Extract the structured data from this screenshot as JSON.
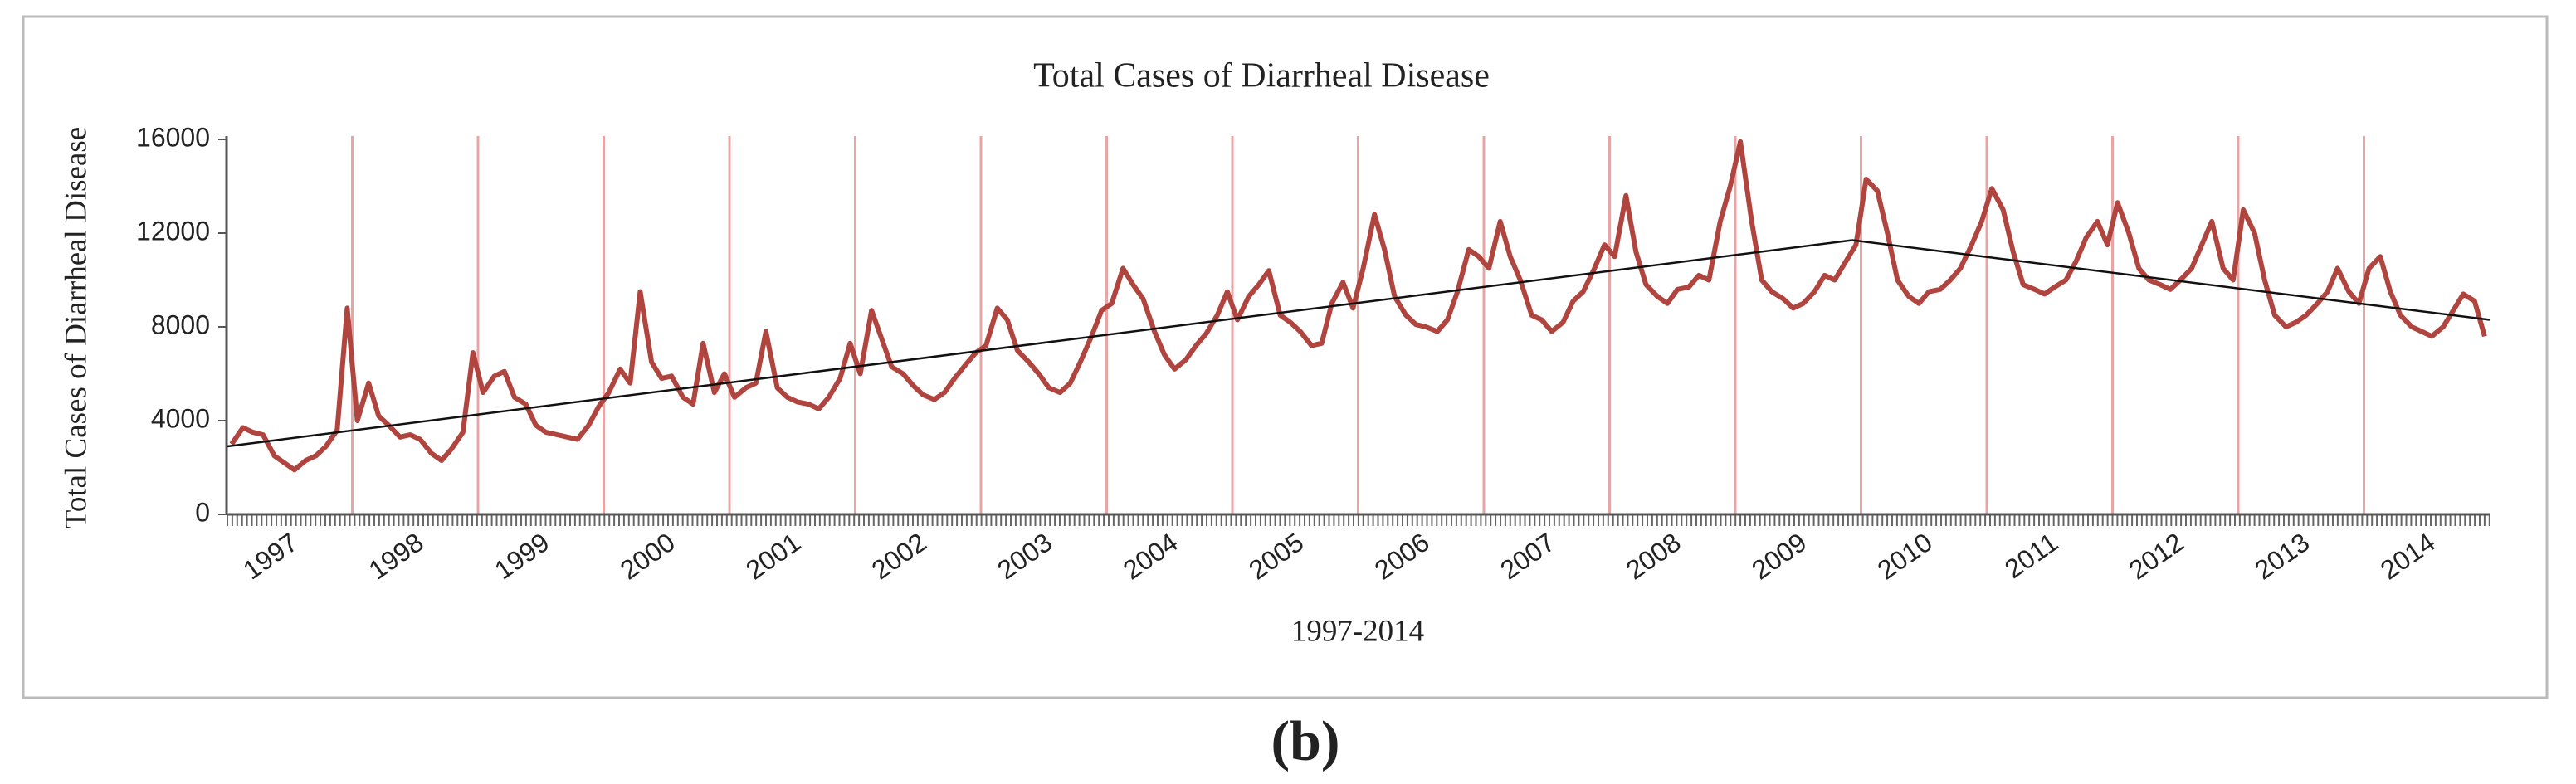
{
  "chart_data": {
    "type": "line",
    "title": "Total Cases of Diarrheal Disease",
    "y_label": "Total Cases of Diarrheal Disease",
    "x_label": "1997-2014",
    "caption": "(b)",
    "xlim": [
      1997,
      2015
    ],
    "xticks": [
      1997,
      1998,
      1999,
      2000,
      2001,
      2002,
      2003,
      2004,
      2005,
      2006,
      2007,
      2008,
      2009,
      2010,
      2011,
      2012,
      2013,
      2014
    ],
    "ylim": [
      0,
      16000
    ],
    "yticks": [
      0,
      4000,
      8000,
      12000,
      16000
    ],
    "grid_color": "#e8a5a5",
    "x": [
      1997.04,
      1997.13,
      1997.21,
      1997.29,
      1997.38,
      1997.46,
      1997.54,
      1997.63,
      1997.71,
      1997.79,
      1997.88,
      1997.96,
      1998.04,
      1998.13,
      1998.21,
      1998.29,
      1998.38,
      1998.46,
      1998.54,
      1998.63,
      1998.71,
      1998.79,
      1998.88,
      1998.96,
      1999.04,
      1999.13,
      1999.21,
      1999.29,
      1999.38,
      1999.46,
      1999.54,
      1999.63,
      1999.71,
      1999.79,
      1999.88,
      1999.96,
      2000.04,
      2000.13,
      2000.21,
      2000.29,
      2000.38,
      2000.46,
      2000.54,
      2000.63,
      2000.71,
      2000.79,
      2000.88,
      2000.96,
      2001.04,
      2001.13,
      2001.21,
      2001.29,
      2001.38,
      2001.46,
      2001.54,
      2001.63,
      2001.71,
      2001.79,
      2001.88,
      2001.96,
      2002.04,
      2002.13,
      2002.21,
      2002.29,
      2002.38,
      2002.46,
      2002.54,
      2002.63,
      2002.71,
      2002.79,
      2002.88,
      2002.96,
      2003.04,
      2003.13,
      2003.21,
      2003.29,
      2003.38,
      2003.46,
      2003.54,
      2003.63,
      2003.71,
      2003.79,
      2003.88,
      2003.96,
      2004.04,
      2004.13,
      2004.21,
      2004.29,
      2004.38,
      2004.46,
      2004.54,
      2004.63,
      2004.71,
      2004.79,
      2004.88,
      2004.96,
      2005.04,
      2005.13,
      2005.21,
      2005.29,
      2005.38,
      2005.46,
      2005.54,
      2005.63,
      2005.71,
      2005.79,
      2005.88,
      2005.96,
      2006.04,
      2006.13,
      2006.21,
      2006.29,
      2006.38,
      2006.46,
      2006.54,
      2006.63,
      2006.71,
      2006.79,
      2006.88,
      2006.96,
      2007.04,
      2007.13,
      2007.21,
      2007.29,
      2007.38,
      2007.46,
      2007.54,
      2007.63,
      2007.71,
      2007.79,
      2007.88,
      2007.96,
      2008.04,
      2008.13,
      2008.21,
      2008.29,
      2008.38,
      2008.46,
      2008.54,
      2008.63,
      2008.71,
      2008.79,
      2008.88,
      2008.96,
      2009.04,
      2009.13,
      2009.21,
      2009.29,
      2009.38,
      2009.46,
      2009.54,
      2009.63,
      2009.71,
      2009.79,
      2009.88,
      2009.96,
      2010.04,
      2010.13,
      2010.21,
      2010.29,
      2010.38,
      2010.46,
      2010.54,
      2010.63,
      2010.71,
      2010.79,
      2010.88,
      2010.96,
      2011.04,
      2011.13,
      2011.21,
      2011.29,
      2011.38,
      2011.46,
      2011.54,
      2011.63,
      2011.71,
      2011.79,
      2011.88,
      2011.96,
      2012.04,
      2012.13,
      2012.21,
      2012.29,
      2012.38,
      2012.46,
      2012.54,
      2012.63,
      2012.71,
      2012.79,
      2012.88,
      2012.96,
      2013.04,
      2013.13,
      2013.21,
      2013.29,
      2013.38,
      2013.46,
      2013.54,
      2013.63,
      2013.71,
      2013.79,
      2013.88,
      2013.96,
      2014.04,
      2014.13,
      2014.21,
      2014.29,
      2014.38,
      2014.46,
      2014.54,
      2014.63,
      2014.71,
      2014.79,
      2014.88,
      2014.96
    ],
    "series": [
      {
        "name": "Total Cases",
        "color": "#b0443e",
        "values": [
          3000,
          3700,
          3500,
          3400,
          2500,
          2200,
          1900,
          2300,
          2500,
          2900,
          3600,
          8800,
          4000,
          5600,
          4200,
          3800,
          3300,
          3400,
          3200,
          2600,
          2300,
          2800,
          3500,
          6900,
          5200,
          5900,
          6100,
          5000,
          4700,
          3800,
          3500,
          3400,
          3300,
          3200,
          3800,
          4600,
          5200,
          6200,
          5600,
          9500,
          6500,
          5800,
          5900,
          5000,
          4700,
          7300,
          5200,
          6000,
          5000,
          5400,
          5600,
          7800,
          5400,
          5000,
          4800,
          4700,
          4500,
          5000,
          5800,
          7300,
          6000,
          8700,
          7500,
          6300,
          6000,
          5500,
          5100,
          4900,
          5200,
          5800,
          6400,
          6900,
          7200,
          8800,
          8300,
          7000,
          6500,
          6000,
          5400,
          5200,
          5600,
          6500,
          7600,
          8700,
          9000,
          10500,
          9800,
          9200,
          7800,
          6800,
          6200,
          6600,
          7200,
          7700,
          8500,
          9500,
          8300,
          9300,
          9800,
          10400,
          8500,
          8200,
          7800,
          7200,
          7300,
          9000,
          9900,
          8800,
          10500,
          12800,
          11300,
          9300,
          8500,
          8100,
          8000,
          7800,
          8300,
          9500,
          11300,
          11000,
          10500,
          12500,
          11000,
          10000,
          8500,
          8300,
          7800,
          8200,
          9100,
          9500,
          10500,
          11500,
          11000,
          13600,
          11200,
          9800,
          9300,
          9000,
          9600,
          9700,
          10200,
          10000,
          12500,
          14000,
          15900,
          12500,
          10000,
          9500,
          9200,
          8800,
          9000,
          9500,
          10200,
          10000,
          10800,
          11500,
          14300,
          13800,
          12000,
          10000,
          9300,
          9000,
          9500,
          9600,
          10000,
          10500,
          11500,
          12500,
          13900,
          13000,
          11200,
          9800,
          9600,
          9400,
          9700,
          10000,
          10800,
          11800,
          12500,
          11500,
          13300,
          12000,
          10500,
          10000,
          9800,
          9600,
          10000,
          10500,
          11500,
          12500,
          10500,
          10000,
          13000,
          12000,
          10000,
          8500,
          8000,
          8200,
          8500,
          9000,
          9500,
          10500,
          9500,
          9000,
          10500,
          11000,
          9500,
          8500,
          8000,
          7800,
          7600,
          8000,
          8700,
          9400,
          9100,
          7600
        ]
      }
    ],
    "trend_lines": [
      {
        "color": "#111111",
        "x": [
          1997,
          2009.93
        ],
        "values": [
          2900,
          11700
        ]
      },
      {
        "color": "#111111",
        "x": [
          2009.93,
          2015
        ],
        "values": [
          11700,
          8300
        ]
      }
    ]
  }
}
